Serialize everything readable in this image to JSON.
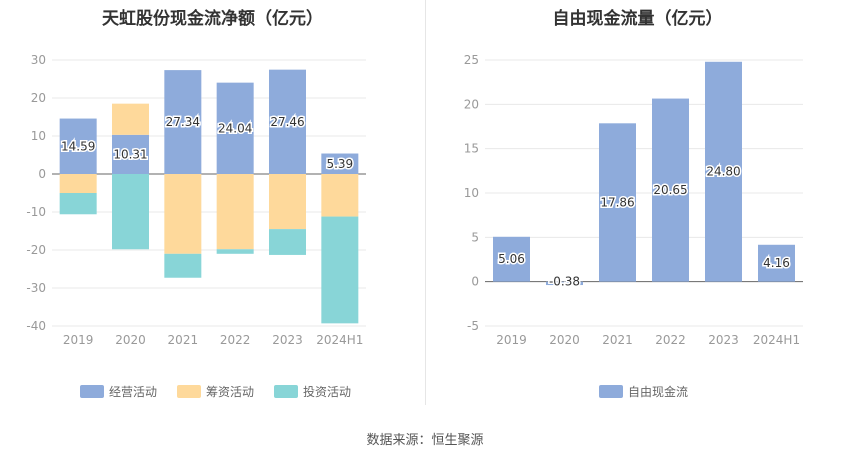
{
  "source": "数据来源：恒生聚源",
  "chart_data": [
    {
      "type": "bar",
      "stacked": true,
      "title": "天虹股份现金流净额（亿元）",
      "categories": [
        "2019",
        "2020",
        "2021",
        "2022",
        "2023",
        "2024H1"
      ],
      "ylim": [
        -40,
        30
      ],
      "yticks": [
        30,
        20,
        10,
        0,
        -10,
        -20,
        -30,
        -40
      ],
      "grid": true,
      "legend_position": "bottom",
      "series": [
        {
          "name": "经营活动",
          "color": "#8eabdb",
          "values": [
            14.59,
            10.31,
            27.34,
            24.04,
            27.46,
            5.39
          ],
          "show_labels": true
        },
        {
          "name": "筹资活动",
          "color": "#fed99b",
          "values": [
            -5.0,
            8.2,
            -21.0,
            -19.8,
            -14.5,
            -11.2
          ],
          "show_labels": false
        },
        {
          "name": "投资活动",
          "color": "#88d5d7",
          "values": [
            -5.6,
            -19.8,
            -6.3,
            -1.2,
            -6.8,
            -28.1
          ],
          "show_labels": false
        }
      ]
    },
    {
      "type": "bar",
      "stacked": false,
      "title": "自由现金流量（亿元）",
      "categories": [
        "2019",
        "2020",
        "2021",
        "2022",
        "2023",
        "2024H1"
      ],
      "ylim": [
        -5,
        25
      ],
      "yticks": [
        25,
        20,
        15,
        10,
        5,
        0,
        -5
      ],
      "grid": true,
      "legend_position": "bottom",
      "series": [
        {
          "name": "自由现金流",
          "color": "#8eabdb",
          "values": [
            5.06,
            -0.38,
            17.86,
            20.65,
            24.8,
            4.16
          ],
          "show_labels": true
        }
      ]
    }
  ]
}
